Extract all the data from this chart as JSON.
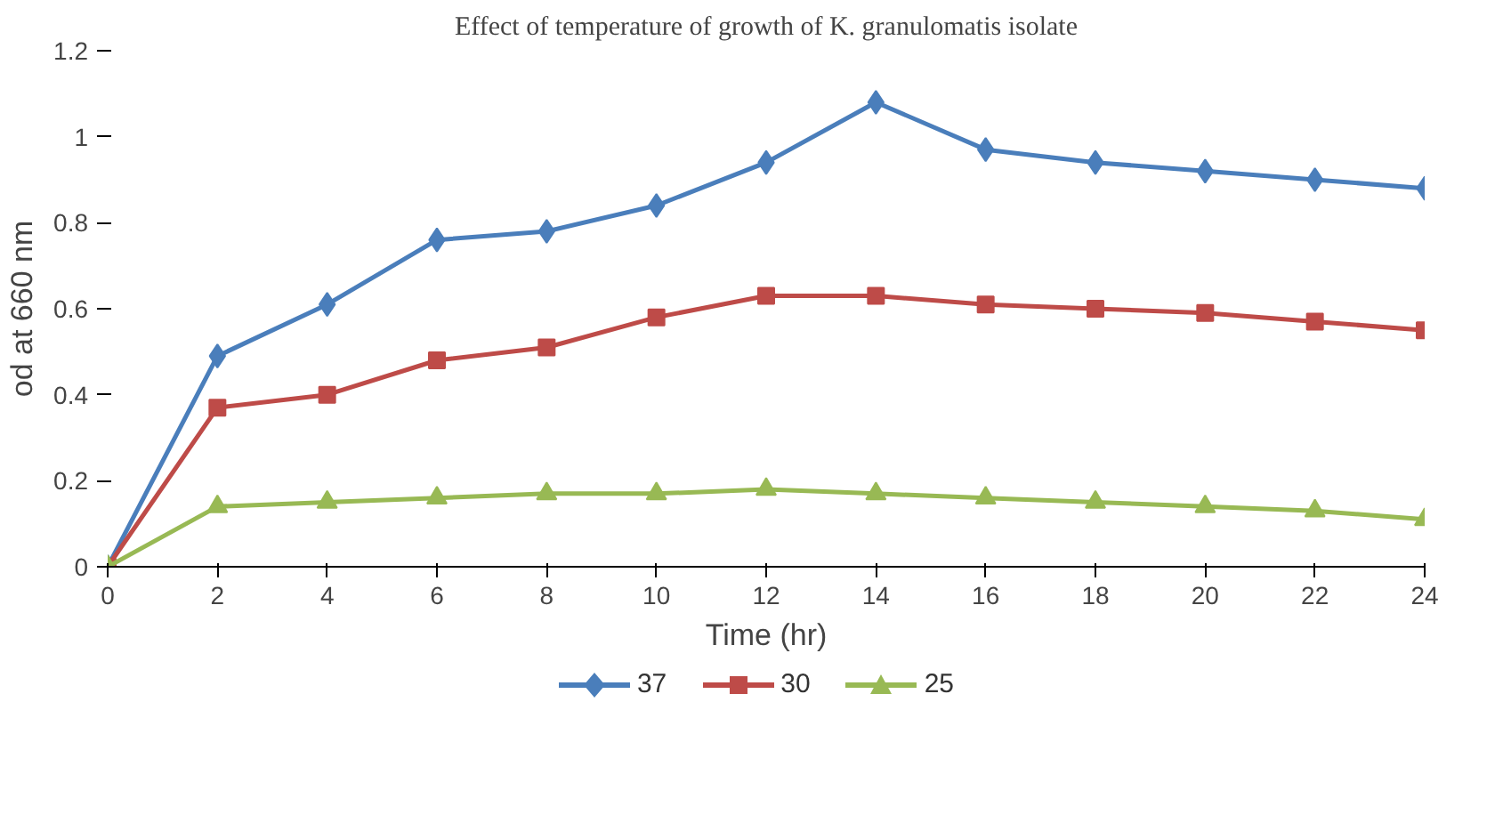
{
  "chart_data": {
    "type": "line",
    "title": "Effect of temperature of growth of K. granulomatis isolate",
    "xlabel": "Time (hr)",
    "ylabel": "od at 660 nm",
    "x": [
      0,
      2,
      4,
      6,
      8,
      10,
      12,
      14,
      16,
      18,
      20,
      22,
      24
    ],
    "series": [
      {
        "name": "37",
        "color": "#4a7ebb",
        "marker": "diamond",
        "values": [
          0,
          0.49,
          0.61,
          0.76,
          0.78,
          0.84,
          0.94,
          1.08,
          0.97,
          0.94,
          0.92,
          0.9,
          0.88
        ]
      },
      {
        "name": "30",
        "color": "#be4b48",
        "marker": "square",
        "values": [
          0,
          0.37,
          0.4,
          0.48,
          0.51,
          0.58,
          0.63,
          0.63,
          0.61,
          0.6,
          0.59,
          0.57,
          0.55
        ]
      },
      {
        "name": "25",
        "color": "#98b954",
        "marker": "triangle",
        "values": [
          0,
          0.14,
          0.15,
          0.16,
          0.17,
          0.17,
          0.18,
          0.17,
          0.16,
          0.15,
          0.14,
          0.13,
          0.11
        ]
      }
    ],
    "xlim": [
      0,
      24
    ],
    "xticks": [
      0,
      2,
      4,
      6,
      8,
      10,
      12,
      14,
      16,
      18,
      20,
      22,
      24
    ],
    "ylim": [
      0,
      1.2
    ],
    "yticks": [
      0,
      0.2,
      0.4,
      0.6,
      0.8,
      1,
      1.2
    ],
    "grid": false,
    "legend": "bottom"
  }
}
